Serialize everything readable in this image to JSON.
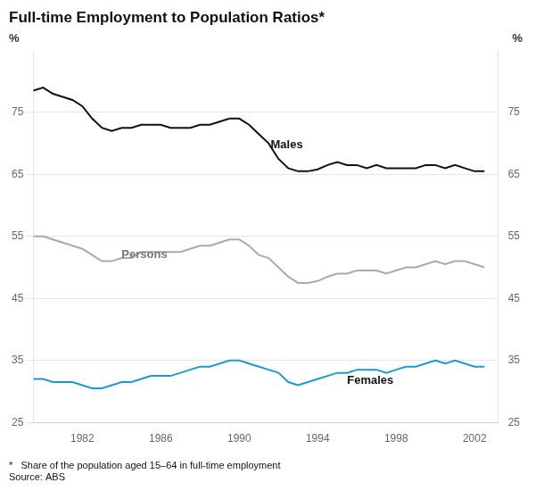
{
  "chart_data": {
    "type": "line",
    "title": "Full-time Employment to Population Ratios*",
    "ylabel": "%",
    "y2label": "%",
    "footnotes": [
      "*   Share of the population aged 15–64 in full-time employment",
      "Source: ABS"
    ],
    "x": [
      1979.5,
      1980.0,
      1980.5,
      1981.0,
      1981.5,
      1982.0,
      1982.5,
      1983.0,
      1983.5,
      1984.0,
      1984.5,
      1985.0,
      1985.5,
      1986.0,
      1986.5,
      1987.0,
      1987.5,
      1988.0,
      1988.5,
      1989.0,
      1989.5,
      1990.0,
      1990.5,
      1991.0,
      1991.5,
      1992.0,
      1992.5,
      1993.0,
      1993.5,
      1994.0,
      1994.5,
      1995.0,
      1995.5,
      1996.0,
      1996.5,
      1997.0,
      1997.5,
      1998.0,
      1998.5,
      1999.0,
      1999.5,
      2000.0,
      2000.5,
      2001.0,
      2001.5,
      2002.0,
      2002.5
    ],
    "series": [
      {
        "color": "#111111",
        "values": [
          78.5,
          79.0,
          78.0,
          77.5,
          77.0,
          76.0,
          74.0,
          72.5,
          72.0,
          72.5,
          72.5,
          73.0,
          73.0,
          73.0,
          72.5,
          72.5,
          72.5,
          73.0,
          73.0,
          73.5,
          74.0,
          74.0,
          73.0,
          71.5,
          70.0,
          67.5,
          66.0,
          65.5,
          65.5,
          65.8,
          66.5,
          67.0,
          66.5,
          66.5,
          66.0,
          66.5,
          66.0,
          66.0,
          66.0,
          66.0,
          66.5,
          66.5,
          66.0,
          66.5,
          66.0,
          65.5,
          65.5
        ]
      },
      {
        "color": "#aaaaaa",
        "values": [
          55.0,
          55.0,
          54.5,
          54.0,
          53.5,
          53.0,
          52.0,
          51.0,
          51.0,
          51.5,
          51.5,
          52.5,
          52.5,
          52.5,
          52.5,
          52.5,
          53.0,
          53.5,
          53.5,
          54.0,
          54.5,
          54.5,
          53.5,
          52.0,
          51.5,
          50.0,
          48.5,
          47.5,
          47.5,
          47.8,
          48.5,
          49.0,
          49.0,
          49.5,
          49.5,
          49.5,
          49.0,
          49.5,
          50.0,
          50.0,
          50.5,
          51.0,
          50.5,
          51.0,
          51.0,
          50.5,
          50.0
        ]
      },
      {
        "color": "#2299cc",
        "values": [
          32.0,
          32.0,
          31.5,
          31.5,
          31.5,
          31.0,
          30.5,
          30.5,
          31.0,
          31.5,
          31.5,
          32.0,
          32.5,
          32.5,
          32.5,
          33.0,
          33.5,
          34.0,
          34.0,
          34.5,
          35.0,
          35.0,
          34.5,
          34.0,
          33.5,
          33.0,
          31.5,
          31.0,
          31.5,
          32.0,
          32.5,
          33.0,
          33.0,
          33.5,
          33.5,
          33.5,
          33.0,
          33.5,
          34.0,
          34.0,
          34.5,
          35.0,
          34.5,
          35.0,
          34.5,
          34.0,
          34.0
        ]
      }
    ],
    "annotations": [
      {
        "text": "Males",
        "x": 1991.6,
        "y": 69.2,
        "color": "#111111"
      },
      {
        "text": "Persons",
        "x": 1984.0,
        "y": 51.5,
        "color": "#777777"
      },
      {
        "text": "Females",
        "x": 1995.5,
        "y": 31.2,
        "color": "#111111"
      }
    ],
    "xlim": [
      1979.5,
      2003.2
    ],
    "xticks": [
      1982,
      1986,
      1990,
      1994,
      1998,
      2002
    ],
    "ylim": [
      25,
      85
    ],
    "yticks": [
      25,
      35,
      45,
      55,
      65,
      75
    ],
    "y2lim": [
      25,
      85
    ],
    "y2ticks": [
      25,
      35,
      45,
      55,
      65,
      75
    ],
    "grid": true
  }
}
